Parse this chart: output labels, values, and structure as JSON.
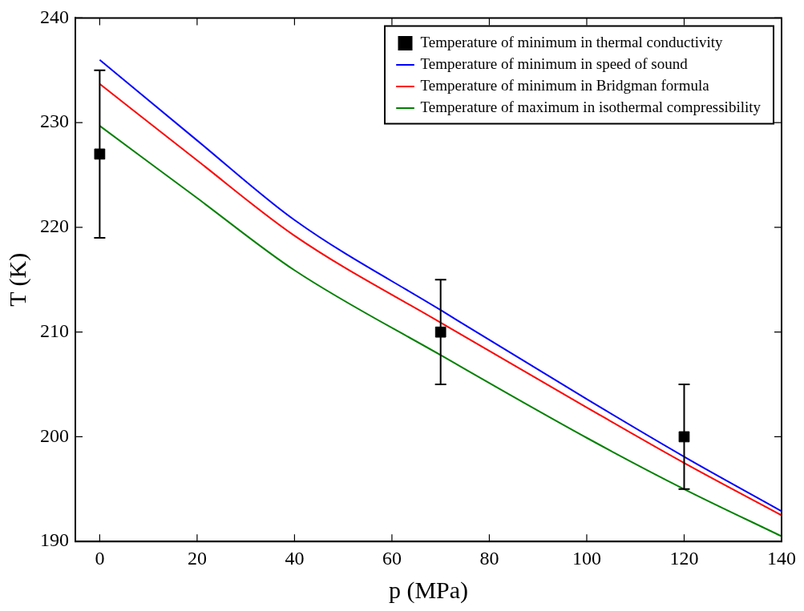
{
  "chart_data": {
    "type": "line",
    "xlabel": "p (MPa)",
    "ylabel": "T (K)",
    "xlim": [
      -5,
      140
    ],
    "ylim": [
      190,
      240
    ],
    "xticks": [
      0,
      20,
      40,
      60,
      80,
      100,
      120,
      140
    ],
    "yticks": [
      190,
      200,
      210,
      220,
      230,
      240
    ],
    "legend": "top right",
    "series": [
      {
        "name": "Temperature of minimum in thermal conductivity",
        "type": "scatter",
        "marker": "square",
        "color": "#000000",
        "x": [
          0,
          70,
          120
        ],
        "values": [
          227,
          210,
          200
        ],
        "errors": [
          8,
          5,
          5
        ]
      },
      {
        "name": "Temperature of minimum in speed of sound",
        "type": "line",
        "color": "#0000ff",
        "x": [
          0,
          20,
          40,
          70,
          100,
          120,
          140
        ],
        "values": [
          236.0,
          228.3,
          220.7,
          212.1,
          203.6,
          198.1,
          192.9
        ]
      },
      {
        "name": "Temperature of minimum in Bridgman formula",
        "type": "line",
        "color": "#ff0000",
        "x": [
          0,
          20,
          40,
          70,
          100,
          120,
          140
        ],
        "values": [
          233.7,
          226.4,
          219.2,
          210.9,
          202.8,
          197.5,
          192.5
        ]
      },
      {
        "name": "Temperature of maximum in isothermal compressibility",
        "type": "line",
        "color": "#008000",
        "x": [
          0,
          20,
          40,
          70,
          100,
          120,
          140
        ],
        "values": [
          229.7,
          222.8,
          215.9,
          207.8,
          199.9,
          195.0,
          190.5
        ]
      }
    ]
  }
}
